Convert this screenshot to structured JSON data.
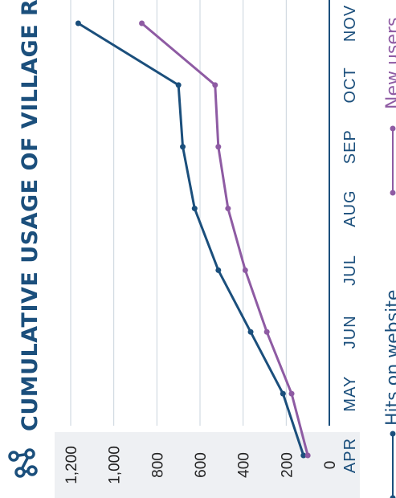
{
  "chart_data": {
    "type": "line",
    "title": "CUMULATIVE USAGE OF VILLAGE RESOURCES",
    "categories": [
      "APR",
      "MAY",
      "JUN",
      "JUL",
      "AUG",
      "SEP",
      "OCT",
      "NOV"
    ],
    "series": [
      {
        "name": "Hits on website",
        "color": "#1b4f7c",
        "values": [
          120,
          215,
          365,
          515,
          625,
          680,
          700,
          1165
        ]
      },
      {
        "name": "New users",
        "color": "#8e5ba3",
        "values": [
          100,
          175,
          290,
          390,
          470,
          515,
          530,
          870
        ]
      }
    ],
    "ylim": [
      0,
      1300
    ],
    "yticks": [
      "0",
      "200",
      "400",
      "600",
      "800",
      "1,000",
      "1,200"
    ],
    "ytick_values": [
      0,
      200,
      400,
      600,
      800,
      1000,
      1200
    ],
    "grid": true,
    "legend": "bottom",
    "orientation": "rotated-90"
  },
  "icons": {
    "title_icon": "line-chart-icon"
  },
  "colors": {
    "background": "#ffffff",
    "band": "#eef0f3",
    "grid": "#c9d3dc",
    "axis": "#1b4f7c"
  }
}
